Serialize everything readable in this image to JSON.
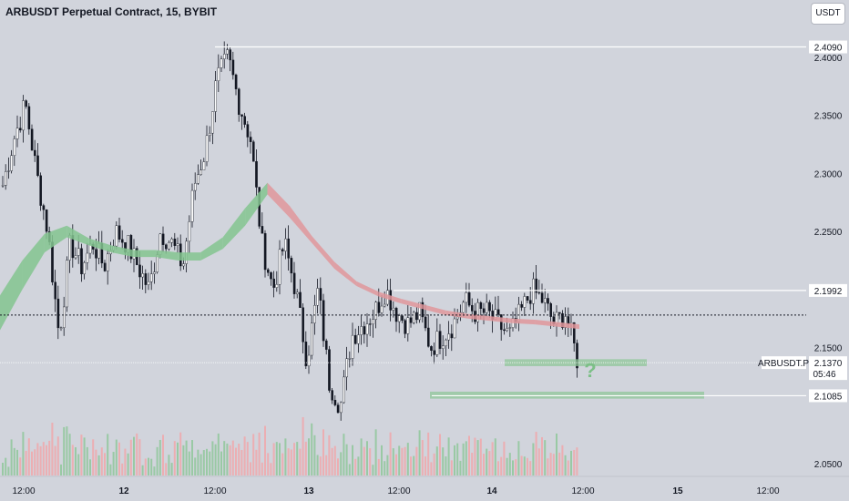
{
  "header": {
    "title": "ARBUSDT Perpetual Contract, 15, BYBIT",
    "currency_button": "USDT"
  },
  "chart_data": {
    "type": "candlestick",
    "symbol": "ARBUSDT.P",
    "price_axis": {
      "ticks": [
        "2.4000",
        "2.3500",
        "2.3000",
        "2.2500",
        "2.1500",
        "2.0500"
      ],
      "tick_values": [
        2.4,
        2.35,
        2.3,
        2.25,
        2.15,
        2.05
      ]
    },
    "time_axis": {
      "ticks": [
        "12:00",
        "12",
        "12:00",
        "13",
        "12:00",
        "14",
        "12:00",
        "15",
        "12:00"
      ],
      "bold_ticks": [
        "12",
        "13",
        "14",
        "15"
      ]
    },
    "levels": [
      {
        "label": "2.4090",
        "value": 2.409,
        "style": "solid",
        "color": "#ffffff"
      },
      {
        "label": "2.1992",
        "value": 2.1992,
        "style": "solid",
        "color": "#ffffff"
      },
      {
        "label": "2.1366",
        "value": 2.1366,
        "style": "label-only"
      },
      {
        "label": "2.1085",
        "value": 2.1085,
        "style": "solid",
        "color": "#ffffff"
      },
      {
        "value": 2.178,
        "style": "dotted",
        "color": "#131722"
      }
    ],
    "last_price": {
      "symbol": "ARBUSDT.P",
      "price": "2.1370",
      "countdown": "05:46",
      "value": 2.137
    },
    "zones": [
      {
        "from": 2.134,
        "to": 2.14,
        "color": "#8fc79a"
      },
      {
        "from": 2.106,
        "to": 2.112,
        "color": "#8fc79a"
      }
    ],
    "annotation": "?",
    "colors": {
      "up": "#ffffff",
      "down": "#131722",
      "ma_up": "#84c48f",
      "ma_down": "#e0969b",
      "vol_up": "#8fc79a",
      "vol_down": "#f1a7aa"
    },
    "ema_ribbon": [
      [
        2.165,
        2.195
      ],
      [
        2.2,
        2.225
      ],
      [
        2.232,
        2.248
      ],
      [
        2.245,
        2.255
      ],
      [
        2.238,
        2.244
      ],
      [
        2.232,
        2.238
      ],
      [
        2.228,
        2.234
      ],
      [
        2.228,
        2.234
      ],
      [
        2.225,
        2.232
      ],
      [
        2.225,
        2.232
      ],
      [
        2.235,
        2.245
      ],
      [
        2.255,
        2.27
      ],
      [
        2.282,
        2.292
      ],
      [
        2.262,
        2.272
      ],
      [
        2.24,
        2.246
      ],
      [
        2.218,
        2.224
      ],
      [
        2.203,
        2.207
      ],
      [
        2.194,
        2.198
      ],
      [
        2.188,
        2.192
      ],
      [
        2.183,
        2.187
      ],
      [
        2.178,
        2.182
      ],
      [
        2.175,
        2.179
      ],
      [
        2.173,
        2.177
      ],
      [
        2.171,
        2.175
      ],
      [
        2.17,
        2.174
      ],
      [
        2.168,
        2.172
      ],
      [
        2.166,
        2.17
      ]
    ],
    "ohlc_keypoints": [
      2.29,
      2.33,
      2.36,
      2.3,
      2.25,
      2.16,
      2.24,
      2.22,
      2.24,
      2.22,
      2.25,
      2.24,
      2.22,
      2.2,
      2.25,
      2.24,
      2.22,
      2.29,
      2.32,
      2.38,
      2.4,
      2.36,
      2.33,
      2.24,
      2.2,
      2.24,
      2.2,
      2.14,
      2.2,
      2.12,
      2.1,
      2.16,
      2.17,
      2.18,
      2.2,
      2.18,
      2.17,
      2.18,
      2.15,
      2.16,
      2.17,
      2.19,
      2.18,
      2.18,
      2.17,
      2.16,
      2.18,
      2.2,
      2.19,
      2.17,
      2.18,
      2.14
    ]
  }
}
